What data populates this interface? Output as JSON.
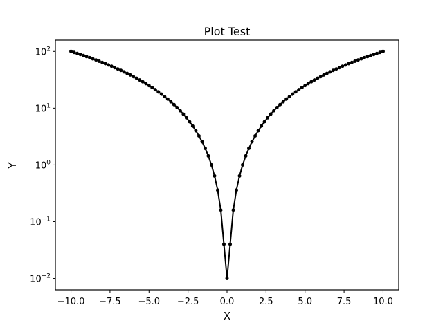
{
  "chart_data": {
    "type": "line",
    "title": "Plot Test",
    "xlabel": "X",
    "ylabel": "Y",
    "xscale": "linear",
    "yscale": "log",
    "xlim": [
      -11.0,
      11.0
    ],
    "ylim": [
      0.0063,
      158
    ],
    "grid": false,
    "line_color": "#000000",
    "marker": "circle",
    "x_ticks": [
      {
        "value": -10.0,
        "label": "−10.0"
      },
      {
        "value": -7.5,
        "label": "−7.5"
      },
      {
        "value": -5.0,
        "label": "−5.0"
      },
      {
        "value": -2.5,
        "label": "−2.5"
      },
      {
        "value": 0.0,
        "label": "0.0"
      },
      {
        "value": 2.5,
        "label": "2.5"
      },
      {
        "value": 5.0,
        "label": "5.0"
      },
      {
        "value": 7.5,
        "label": "7.5"
      },
      {
        "value": 10.0,
        "label": "10.0"
      }
    ],
    "y_ticks": [
      {
        "value": 0.01,
        "base": "10",
        "exp": "−2"
      },
      {
        "value": 0.1,
        "base": "10",
        "exp": "−1"
      },
      {
        "value": 1,
        "base": "10",
        "exp": "0"
      },
      {
        "value": 10,
        "base": "10",
        "exp": "1"
      },
      {
        "value": 100,
        "base": "10",
        "exp": "2"
      }
    ],
    "series": [
      {
        "x": [
          -10.0,
          -9.8,
          -9.6,
          -9.4,
          -9.2,
          -9.0,
          -8.8,
          -8.6,
          -8.4,
          -8.2,
          -8.0,
          -7.8,
          -7.6,
          -7.4,
          -7.2,
          -7.0,
          -6.8,
          -6.6,
          -6.4,
          -6.2,
          -6.0,
          -5.8,
          -5.6,
          -5.4,
          -5.2,
          -5.0,
          -4.8,
          -4.6,
          -4.4,
          -4.2,
          -4.0,
          -3.8,
          -3.6,
          -3.4,
          -3.2,
          -3.0,
          -2.8,
          -2.6,
          -2.4,
          -2.2,
          -2.0,
          -1.8,
          -1.6,
          -1.4,
          -1.2,
          -1.0,
          -0.8,
          -0.6,
          -0.4,
          -0.2,
          0.0,
          0.2,
          0.4,
          0.6,
          0.8,
          1.0,
          1.2,
          1.4,
          1.6,
          1.8,
          2.0,
          2.2,
          2.4,
          2.6,
          2.8,
          3.0,
          3.2,
          3.4,
          3.6,
          3.8,
          4.0,
          4.2,
          4.4,
          4.6,
          4.8,
          5.0,
          5.2,
          5.4,
          5.6,
          5.8,
          6.0,
          6.2,
          6.4,
          6.6,
          6.8,
          7.0,
          7.2,
          7.4,
          7.6,
          7.8,
          8.0,
          8.2,
          8.4,
          8.6,
          8.8,
          9.0,
          9.2,
          9.4,
          9.6,
          9.8,
          10.0
        ],
        "y": [
          100.0,
          96.04,
          92.16,
          88.36,
          84.64,
          81.0,
          77.44,
          73.96,
          70.56,
          67.24,
          64.0,
          60.84,
          57.76,
          54.76,
          51.84,
          49.0,
          46.24,
          43.56,
          40.96,
          38.44,
          36.0,
          33.64,
          31.36,
          29.16,
          27.04,
          25.0,
          23.04,
          21.16,
          19.36,
          17.64,
          16.0,
          14.44,
          12.96,
          11.56,
          10.24,
          9.0,
          7.84,
          6.76,
          5.76,
          4.84,
          4.0,
          3.24,
          2.56,
          1.96,
          1.44,
          1.0,
          0.64,
          0.36,
          0.16,
          0.04,
          0.01,
          0.04,
          0.16,
          0.36,
          0.64,
          1.0,
          1.44,
          1.96,
          2.56,
          3.24,
          4.0,
          4.84,
          5.76,
          6.76,
          7.84,
          9.0,
          10.24,
          11.56,
          12.96,
          14.44,
          16.0,
          17.64,
          19.36,
          21.16,
          23.04,
          25.0,
          27.04,
          29.16,
          31.36,
          33.64,
          36.0,
          38.44,
          40.96,
          43.56,
          46.24,
          49.0,
          51.84,
          54.76,
          57.76,
          60.84,
          64.0,
          67.24,
          70.56,
          73.96,
          77.44,
          81.0,
          84.64,
          88.36,
          92.16,
          96.04,
          100.0
        ]
      }
    ]
  }
}
